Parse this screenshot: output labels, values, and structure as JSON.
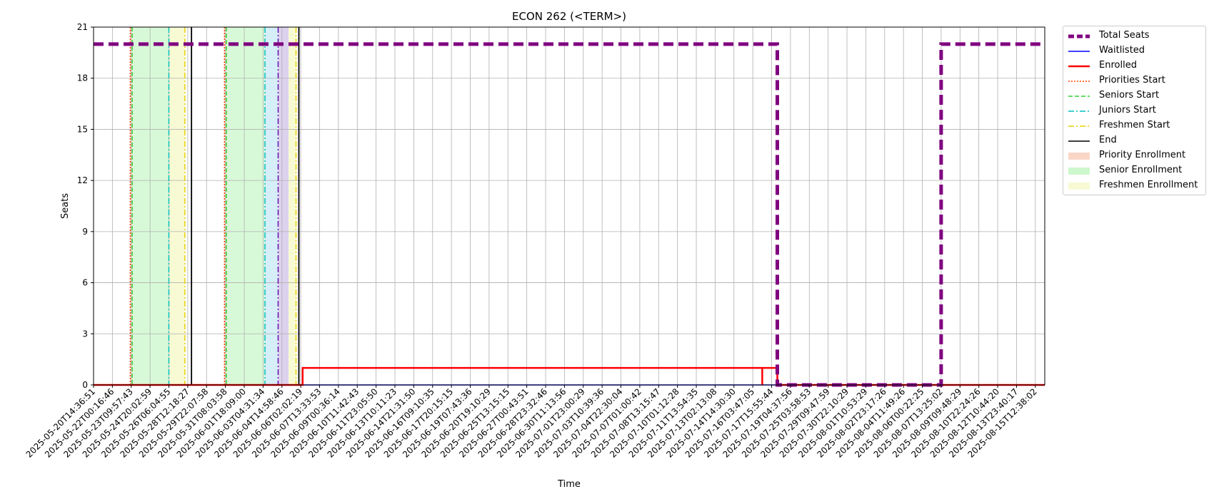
{
  "chart_data": {
    "type": "line",
    "title": "ECON 262 (<TERM>)",
    "xlabel": "Time",
    "ylabel": "Seats",
    "ylim": [
      0,
      21
    ],
    "yticks": [
      0,
      3,
      6,
      9,
      12,
      15,
      18,
      21
    ],
    "grid": true,
    "legend_position": "outside-top-right",
    "x_ticks": [
      "2025-05-20T14:36:51",
      "2025-05-22T00:16:46",
      "2025-05-23T09:57:43",
      "2025-05-24T20:02:59",
      "2025-05-26T06:04:55",
      "2025-05-28T12:18:27",
      "2025-05-29T22:07:58",
      "2025-05-31T08:03:58",
      "2025-06-01T18:09:00",
      "2025-06-03T04:31:34",
      "2025-06-04T14:58:46",
      "2025-06-06T02:02:19",
      "2025-06-07T13:33:53",
      "2025-06-09T00:36:14",
      "2025-06-10T11:42:43",
      "2025-06-11T23:05:50",
      "2025-06-13T10:11:23",
      "2025-06-14T21:31:50",
      "2025-06-16T09:10:35",
      "2025-06-17T20:15:15",
      "2025-06-19T07:43:36",
      "2025-06-20T19:10:29",
      "2025-06-25T13:15:15",
      "2025-06-27T00:43:51",
      "2025-06-28T23:32:46",
      "2025-06-30T11:13:56",
      "2025-07-01T23:00:29",
      "2025-07-03T10:39:36",
      "2025-07-04T22:30:04",
      "2025-07-07T01:00:42",
      "2025-07-08T13:15:47",
      "2025-07-10T01:12:28",
      "2025-07-11T13:54:35",
      "2025-07-13T02:13:08",
      "2025-07-14T14:30:30",
      "2025-07-16T03:47:05",
      "2025-07-17T15:55:44",
      "2025-07-19T04:37:56",
      "2025-07-25T03:58:53",
      "2025-07-29T09:47:59",
      "2025-07-30T22:10:29",
      "2025-08-01T10:53:29",
      "2025-08-02T23:17:26",
      "2025-08-04T11:49:26",
      "2025-08-06T00:22:25",
      "2025-08-07T13:25:02",
      "2025-08-09T09:48:29",
      "2025-08-10T22:24:26",
      "2025-08-12T10:44:20",
      "2025-08-13T23:40:17",
      "2025-08-15T12:38:02"
    ],
    "series": [
      {
        "name": "Total Seats",
        "color": "#800080",
        "style": "dashed-thick",
        "points": [
          [
            0,
            20
          ],
          [
            36.3,
            20
          ],
          [
            36.3,
            0
          ],
          [
            45,
            0
          ],
          [
            45,
            20
          ],
          [
            50.5,
            20
          ]
        ]
      },
      {
        "name": "Waitlisted",
        "color": "#0000ff",
        "style": "solid",
        "points": [
          [
            0,
            0
          ],
          [
            50.5,
            0
          ]
        ]
      },
      {
        "name": "Enrolled",
        "color": "#ff0000",
        "style": "solid-thick",
        "points": [
          [
            0,
            0
          ],
          [
            11.1,
            0
          ],
          [
            11.1,
            1
          ],
          [
            35.5,
            1
          ],
          [
            35.5,
            0
          ],
          [
            35.5,
            1
          ],
          [
            36.3,
            1
          ],
          [
            36.3,
            0
          ],
          [
            50.5,
            0
          ]
        ]
      }
    ],
    "vertical_lines": [
      {
        "name": "Priorities Start",
        "color": "#ff4500",
        "style": "dotted",
        "x": [
          1.95,
          6.95
        ]
      },
      {
        "name": "Seniors Start",
        "color": "#32cd32",
        "style": "dashed",
        "x": [
          2.05,
          7.05
        ]
      },
      {
        "name": "Juniors Start",
        "color": "#00bfbf",
        "style": "dashdot",
        "x": [
          4.0,
          9.1
        ]
      },
      {
        "name": "Freshmen Start",
        "color": "#e6d200",
        "style": "dashdot",
        "x": [
          4.85,
          10.75
        ]
      },
      {
        "name": "End",
        "color": "#000000",
        "style": "solid",
        "x": [
          5.2,
          10.9
        ]
      },
      {
        "name": "",
        "color": "#6a0dad",
        "style": "dashdot",
        "x": [
          9.8
        ]
      }
    ],
    "spans": [
      {
        "name": "Priority Enrollment",
        "color": "#f4a582",
        "opacity": 0.35,
        "ranges": [
          [
            1.95,
            2.05
          ],
          [
            6.95,
            7.05
          ]
        ]
      },
      {
        "name": "Senior Enrollment",
        "color": "#90ee90",
        "opacity": 0.35,
        "ranges": [
          [
            2.05,
            4.0
          ],
          [
            7.05,
            9.1
          ]
        ]
      },
      {
        "name": "",
        "color": "#87ceeb",
        "opacity": 0.35,
        "ranges": [
          [
            9.1,
            9.8
          ]
        ]
      },
      {
        "name": "",
        "color": "#b19cd9",
        "opacity": 0.45,
        "ranges": [
          [
            9.8,
            10.35
          ]
        ]
      },
      {
        "name": "Freshmen Enrollment",
        "color": "#f0f5a0",
        "opacity": 0.45,
        "ranges": [
          [
            4.0,
            4.85
          ],
          [
            10.35,
            10.75
          ]
        ]
      }
    ],
    "legend": [
      {
        "label": "Total Seats",
        "kind": "line",
        "color": "#800080",
        "style": "dashed-thick"
      },
      {
        "label": "Waitlisted",
        "kind": "line",
        "color": "#0000ff",
        "style": "solid"
      },
      {
        "label": "Enrolled",
        "kind": "line",
        "color": "#ff0000",
        "style": "solid-thick"
      },
      {
        "label": "Priorities Start",
        "kind": "line",
        "color": "#ff4500",
        "style": "dotted"
      },
      {
        "label": "Seniors Start",
        "kind": "line",
        "color": "#32cd32",
        "style": "dashed"
      },
      {
        "label": "Juniors Start",
        "kind": "line",
        "color": "#00bfbf",
        "style": "dashdot"
      },
      {
        "label": "Freshmen Start",
        "kind": "line",
        "color": "#e6d200",
        "style": "dashdot"
      },
      {
        "label": "End",
        "kind": "line",
        "color": "#000000",
        "style": "solid"
      },
      {
        "label": "Priority Enrollment",
        "kind": "patch",
        "color": "#f4a582"
      },
      {
        "label": "Senior Enrollment",
        "kind": "patch",
        "color": "#90ee90"
      },
      {
        "label": "Freshmen Enrollment",
        "kind": "patch",
        "color": "#f0f5a0"
      }
    ]
  }
}
